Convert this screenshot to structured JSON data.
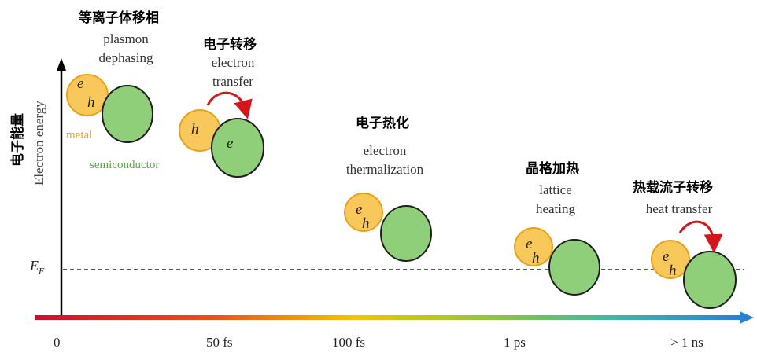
{
  "y_axis": {
    "label_cn": "电子能量",
    "label_en": "Electron energy",
    "fermi_label": "E",
    "fermi_sub": "F"
  },
  "x_axis": {
    "ticks": [
      "0",
      "50 fs",
      "100 fs",
      "1 ps",
      "> 1 ns"
    ]
  },
  "legend": {
    "metal": "metal",
    "semiconductor": "semiconductor"
  },
  "stages": [
    {
      "title_cn": "等离子体移相",
      "line1": "plasmon",
      "line2": "dephasing"
    },
    {
      "title_cn": "电子转移",
      "line1": "electron",
      "line2": "transfer"
    },
    {
      "title_cn": "电子热化",
      "line1": "electron",
      "line2": "thermalization"
    },
    {
      "title_cn": "晶格加热",
      "line1": "lattice",
      "line2": "heating"
    },
    {
      "title_cn": "热载流子转移",
      "line1": "heat transfer",
      "line2": ""
    }
  ],
  "particles": {
    "electron": "e",
    "hole": "h"
  },
  "colors": {
    "metal_fill": "#f9c85a",
    "metal_stroke": "#e8a21a",
    "semi_fill": "#8fcf7a",
    "semi_stroke": "#1e1e1e",
    "arrow_red": "#d4161c"
  }
}
